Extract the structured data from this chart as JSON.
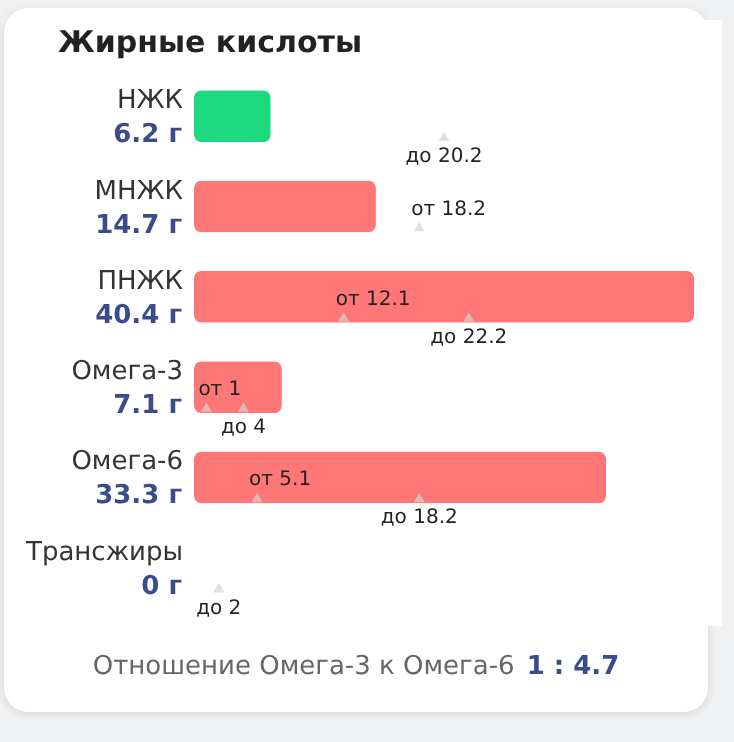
{
  "chart_data": {
    "type": "bar",
    "orientation": "horizontal",
    "title": "Жирные кислоты",
    "categories": [
      "НЖК",
      "МНЖК",
      "ПНЖК",
      "Омега-3",
      "Омега-6",
      "Трансжиры"
    ],
    "series": [
      {
        "type": "bar",
        "values": [
          6.2,
          14.7,
          40.4,
          7.1,
          33.3,
          0
        ],
        "value_labels": [
          "6.2 г",
          "14.7 г",
          "40.4 г",
          "7.1 г",
          "33.3 г",
          "0 г"
        ],
        "colors": [
          "#1ed880",
          "#ff7676",
          "#ff7676",
          "#ff7676",
          "#ff7676",
          "#ff7676"
        ]
      },
      {
        "type": "scatter",
        "x": [
          "НЖК",
          "МНЖК",
          "ПНЖК",
          "Омега-3",
          "Омега-6",
          "Трансжиры"
        ],
        "values": [
          null,
          18.2,
          12.1,
          1,
          5.1,
          null
        ],
        "value_labels": [
          null,
          "от 18.2",
          "от 12.1",
          "от 1",
          "от 5.1",
          null
        ],
        "color": "#d4d4d4"
      },
      {
        "type": "scatter",
        "x": [
          "НЖК",
          "МНЖК",
          "ПНЖК",
          "Омега-3",
          "Омега-6",
          "Трансжиры"
        ],
        "values": [
          20.2,
          null,
          22.2,
          4,
          18.2,
          2
        ],
        "value_labels": [
          "до 20.2",
          null,
          "до 22.2",
          "до 4",
          "до 18.2",
          "до 2"
        ],
        "color": "#d4d4d4"
      }
    ],
    "marker": "triangle",
    "tick_labels": "y",
    "annotations": [
      "Отношение Омега-3 к Омега-6",
      "1 : 4.7"
    ]
  }
}
